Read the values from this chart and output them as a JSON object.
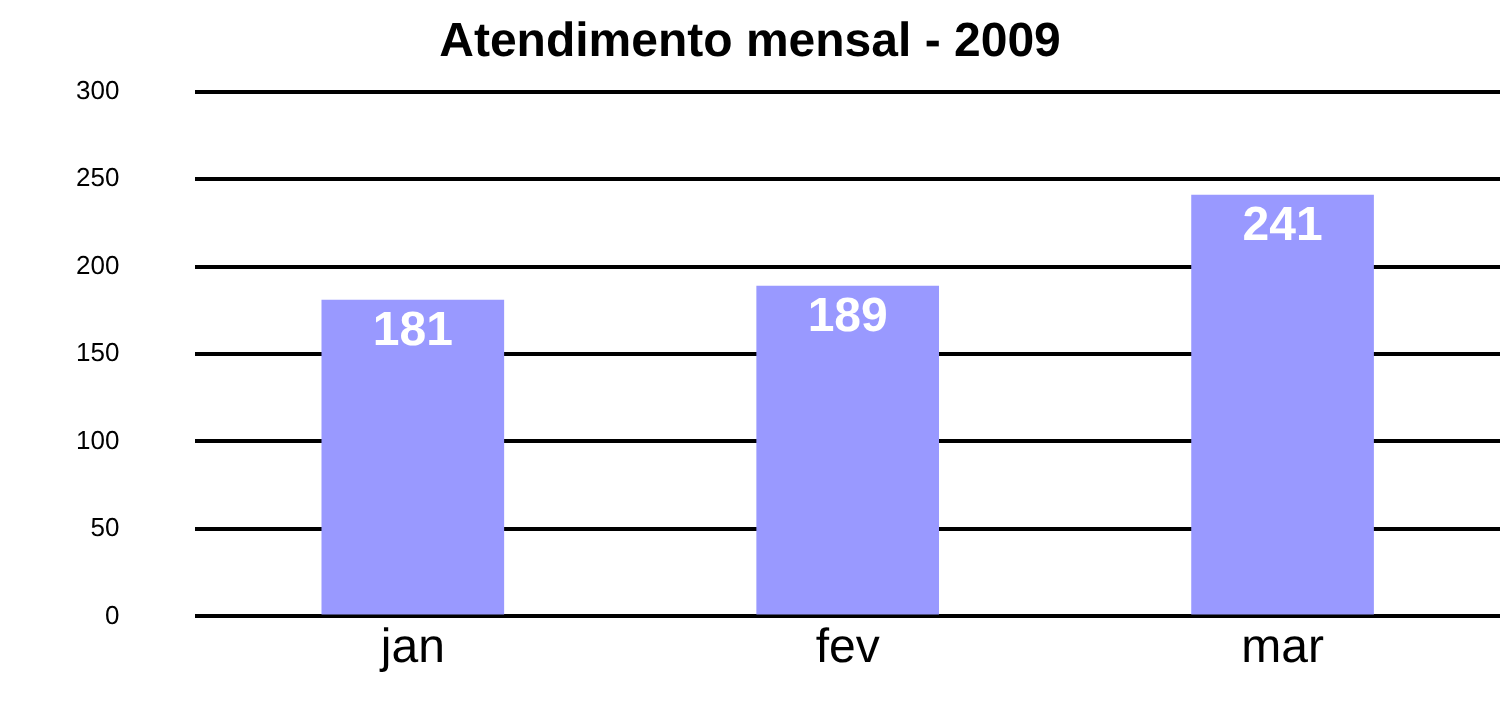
{
  "chart_data": {
    "type": "bar",
    "title": "Atendimento mensal - 2009",
    "categories": [
      "jan",
      "fev",
      "mar"
    ],
    "values": [
      181,
      189,
      241
    ],
    "color": "#9999ff",
    "ylim": [
      0,
      300
    ],
    "yticks": [
      0,
      50,
      100,
      150,
      200,
      250,
      300
    ],
    "grid": "y",
    "data_labels": true
  }
}
